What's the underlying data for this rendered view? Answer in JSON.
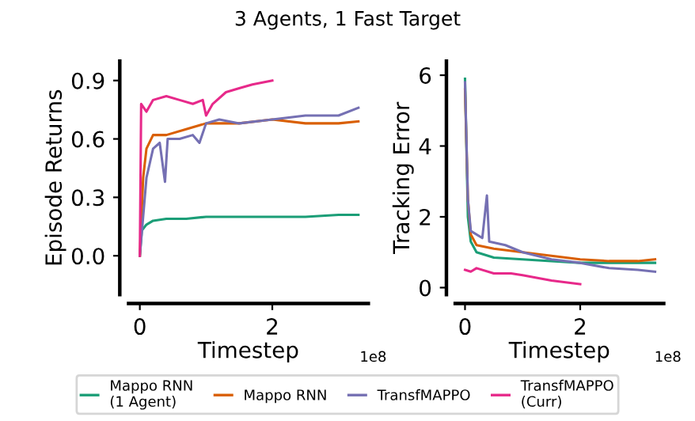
{
  "chart_data": [
    {
      "type": "line",
      "title": "3 Agents, 1 Fast Target",
      "xlabel": "Timestep",
      "ylabel": "Episode Returns",
      "annotations": [
        "1e8"
      ],
      "xlim": [
        -0.17,
        3.45
      ],
      "xticks": [
        0,
        2
      ],
      "ylim": [
        -0.2,
        1.0
      ],
      "yticks": [
        {
          "value": 0,
          "label": "0.0"
        },
        0.3,
        0.6,
        0.9
      ],
      "grid": false,
      "legend": "bottom",
      "line_style": "solid",
      "marker": "none",
      "series": [
        {
          "name": "Mappo RNN\n(1 Agent)",
          "color": "#1b9e77",
          "x": [
            0,
            0.03,
            0.1,
            0.2,
            0.4,
            0.7,
            1.0,
            1.5,
            2.0,
            2.5,
            3.0,
            3.3
          ],
          "values": [
            0.0,
            0.13,
            0.16,
            0.18,
            0.19,
            0.19,
            0.2,
            0.2,
            0.2,
            0.2,
            0.21,
            0.21
          ]
        },
        {
          "name": "Mappo RNN",
          "color": "#d95f02",
          "x": [
            0,
            0.05,
            0.1,
            0.2,
            0.4,
            0.7,
            1.0,
            1.5,
            2.0,
            2.5,
            3.0,
            3.3
          ],
          "values": [
            0.0,
            0.4,
            0.55,
            0.62,
            0.62,
            0.65,
            0.68,
            0.68,
            0.7,
            0.68,
            0.68,
            0.69
          ]
        },
        {
          "name": "TransfMAPPO",
          "color": "#7570b3",
          "x": [
            0,
            0.05,
            0.1,
            0.2,
            0.3,
            0.38,
            0.42,
            0.6,
            0.8,
            0.9,
            1.0,
            1.2,
            1.5,
            2.0,
            2.5,
            3.0,
            3.3
          ],
          "values": [
            0.0,
            0.2,
            0.4,
            0.55,
            0.58,
            0.38,
            0.6,
            0.6,
            0.62,
            0.58,
            0.68,
            0.7,
            0.68,
            0.7,
            0.72,
            0.72,
            0.76
          ]
        },
        {
          "name": "TransfMAPPO\n(Curr)",
          "color": "#e7298a",
          "x": [
            0,
            0.02,
            0.1,
            0.2,
            0.4,
            0.6,
            0.8,
            0.95,
            1.0,
            1.1,
            1.3,
            1.5,
            1.7,
            2.0
          ],
          "values": [
            0.0,
            0.78,
            0.74,
            0.8,
            0.82,
            0.8,
            0.78,
            0.8,
            0.72,
            0.78,
            0.84,
            0.86,
            0.88,
            0.9
          ]
        }
      ]
    },
    {
      "type": "line",
      "xlabel": "Timestep",
      "ylabel": "Tracking Error",
      "annotations": [
        "1e8"
      ],
      "xlim": [
        -0.17,
        3.45
      ],
      "xticks": [
        0,
        2
      ],
      "ylim": [
        -0.2,
        6.4
      ],
      "yticks": [
        0,
        2,
        4,
        6
      ],
      "grid": false,
      "line_style": "solid",
      "marker": "none",
      "series": [
        {
          "color": "#1b9e77",
          "x": [
            0,
            0.05,
            0.1,
            0.2,
            0.5,
            1.0,
            1.5,
            2.0,
            2.5,
            3.0,
            3.3
          ],
          "values": [
            5.9,
            2.0,
            1.3,
            1.0,
            0.85,
            0.8,
            0.75,
            0.7,
            0.7,
            0.7,
            0.7
          ]
        },
        {
          "color": "#d95f02",
          "x": [
            0,
            0.05,
            0.1,
            0.2,
            0.5,
            1.0,
            1.5,
            2.0,
            2.5,
            3.0,
            3.3
          ],
          "values": [
            5.6,
            2.5,
            1.5,
            1.2,
            1.1,
            1.0,
            0.9,
            0.8,
            0.75,
            0.75,
            0.8
          ]
        },
        {
          "color": "#7570b3",
          "x": [
            0,
            0.05,
            0.1,
            0.3,
            0.38,
            0.42,
            0.7,
            1.0,
            1.5,
            2.0,
            2.5,
            3.0,
            3.3
          ],
          "values": [
            5.8,
            2.5,
            1.6,
            1.4,
            2.6,
            1.3,
            1.2,
            1.0,
            0.8,
            0.7,
            0.55,
            0.5,
            0.45
          ]
        },
        {
          "color": "#e7298a",
          "x": [
            0,
            0.1,
            0.2,
            0.5,
            0.8,
            1.0,
            1.5,
            2.0
          ],
          "values": [
            0.5,
            0.45,
            0.55,
            0.4,
            0.4,
            0.35,
            0.2,
            0.1
          ]
        }
      ]
    }
  ]
}
